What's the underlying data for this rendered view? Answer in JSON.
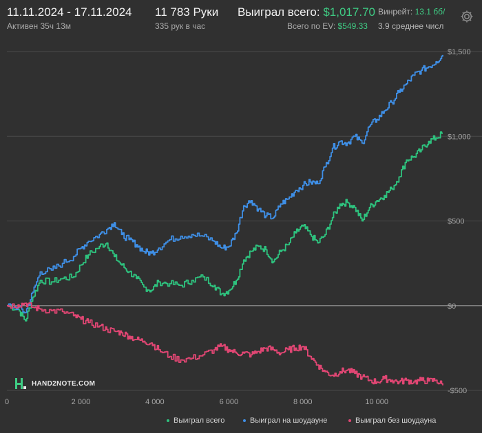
{
  "header": {
    "date_range": "11.11.2024 - 17.11.2024",
    "active_label": "Активен 35ч 13м",
    "hands_label": "11 783 Руки",
    "hands_per_hour": "335 рук в час",
    "won_label": "Выиграл всего:",
    "won_value": "$1,017.70",
    "ev_label": "Всего по EV:",
    "ev_value": "$549.33",
    "winrate_label": "Винрейт:",
    "winrate_value": "13.1 бб/",
    "avg_label": "3.9 среднее числ",
    "settings_icon": "gear-icon"
  },
  "logo": {
    "text": "HAND2NOTE.COM",
    "icon": "h2n-logo-icon"
  },
  "chart_data": {
    "type": "line",
    "title": "",
    "xlabel": "",
    "ylabel": "",
    "xlim": [
      0,
      11783
    ],
    "ylim": [
      -500,
      1500
    ],
    "x_ticks": [
      0,
      2000,
      4000,
      6000,
      8000,
      10000
    ],
    "x_tick_labels": [
      "0",
      "2 000",
      "4 000",
      "6 000",
      "8 000",
      "10 000"
    ],
    "y_ticks": [
      -500,
      0,
      500,
      1000,
      1500
    ],
    "y_tick_labels": [
      "-$500",
      "$0",
      "$500",
      "$1,000",
      "$1,500"
    ],
    "grid": "horizontal",
    "legend_position": "bottom-right",
    "series": [
      {
        "name": "Выиграл всего",
        "color": "#2ec27e",
        "x": [
          0,
          300,
          500,
          700,
          900,
          1200,
          1500,
          1800,
          2000,
          2200,
          2500,
          2700,
          2900,
          3100,
          3300,
          3500,
          3700,
          3900,
          4100,
          4400,
          4700,
          5000,
          5300,
          5600,
          5800,
          6000,
          6200,
          6400,
          6600,
          6800,
          7000,
          7200,
          7400,
          7600,
          7800,
          8000,
          8200,
          8400,
          8600,
          8800,
          9000,
          9200,
          9400,
          9600,
          9800,
          10000,
          10200,
          10400,
          10600,
          10800,
          11000,
          11200,
          11400,
          11600,
          11783
        ],
        "y": [
          0,
          -20,
          -90,
          50,
          150,
          140,
          160,
          170,
          240,
          300,
          350,
          370,
          290,
          240,
          200,
          160,
          110,
          90,
          140,
          130,
          120,
          150,
          170,
          120,
          70,
          90,
          150,
          270,
          320,
          350,
          330,
          260,
          320,
          360,
          430,
          470,
          420,
          370,
          420,
          520,
          600,
          610,
          580,
          500,
          580,
          620,
          650,
          690,
          760,
          860,
          880,
          920,
          970,
          990,
          1018
        ]
      },
      {
        "name": "Выиграл на шоудауне",
        "color": "#3f8fe6",
        "x": [
          0,
          300,
          500,
          700,
          900,
          1200,
          1500,
          1800,
          2000,
          2200,
          2500,
          2700,
          2900,
          3100,
          3300,
          3500,
          3700,
          3900,
          4100,
          4400,
          4700,
          5000,
          5300,
          5600,
          5800,
          6000,
          6200,
          6400,
          6600,
          6800,
          7000,
          7200,
          7400,
          7600,
          7800,
          8000,
          8200,
          8400,
          8600,
          8800,
          9000,
          9200,
          9400,
          9600,
          9800,
          10000,
          10200,
          10400,
          10600,
          10800,
          11000,
          11200,
          11400,
          11600,
          11783
        ],
        "y": [
          0,
          -10,
          -40,
          80,
          200,
          210,
          250,
          290,
          340,
          380,
          420,
          450,
          490,
          420,
          390,
          360,
          320,
          310,
          340,
          390,
          410,
          420,
          410,
          380,
          340,
          350,
          430,
          590,
          620,
          570,
          530,
          520,
          600,
          630,
          680,
          710,
          730,
          720,
          820,
          930,
          970,
          960,
          1000,
          960,
          1060,
          1100,
          1150,
          1200,
          1260,
          1310,
          1360,
          1390,
          1410,
          1440,
          1480
        ]
      },
      {
        "name": "Выиграл без шоудауна",
        "color": "#e04673",
        "x": [
          0,
          300,
          500,
          700,
          900,
          1200,
          1500,
          1800,
          2000,
          2200,
          2500,
          2700,
          2900,
          3100,
          3300,
          3500,
          3700,
          3900,
          4100,
          4400,
          4700,
          5000,
          5300,
          5600,
          5800,
          6000,
          6200,
          6400,
          6600,
          6800,
          7000,
          7200,
          7400,
          7600,
          7800,
          8000,
          8200,
          8400,
          8600,
          8800,
          9000,
          9200,
          9400,
          9600,
          9800,
          10000,
          10200,
          10400,
          10600,
          10800,
          11000,
          11200,
          11400,
          11600,
          11783
        ],
        "y": [
          0,
          5,
          15,
          -10,
          -20,
          -30,
          -35,
          -60,
          -80,
          -100,
          -120,
          -140,
          -150,
          -160,
          -180,
          -200,
          -210,
          -220,
          -260,
          -300,
          -320,
          -310,
          -290,
          -260,
          -240,
          -260,
          -280,
          -280,
          -290,
          -270,
          -250,
          -260,
          -280,
          -260,
          -250,
          -240,
          -300,
          -350,
          -390,
          -410,
          -390,
          -380,
          -400,
          -420,
          -440,
          -450,
          -430,
          -440,
          -450,
          -440,
          -450,
          -440,
          -445,
          -440,
          -470
        ]
      }
    ]
  }
}
